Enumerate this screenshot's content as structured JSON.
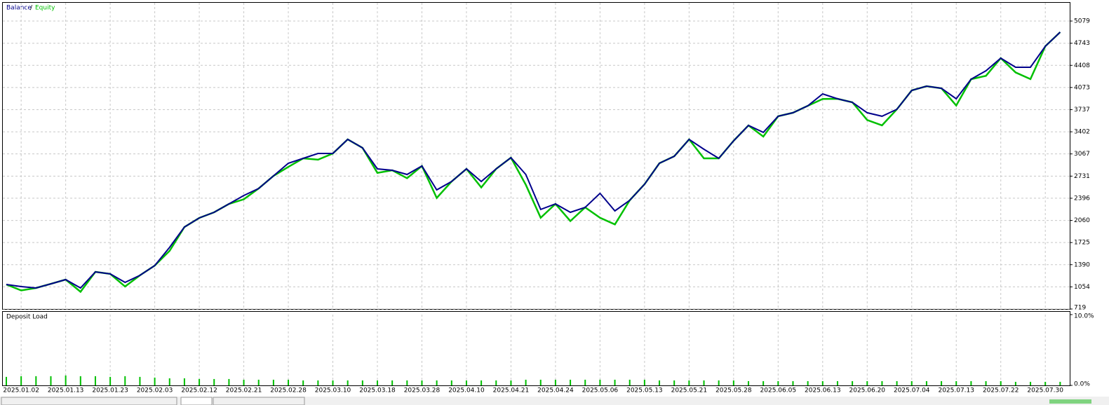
{
  "chart_data": [
    {
      "type": "line",
      "legend_separator": "/",
      "categories": [
        null,
        "2025.01.02",
        null,
        null,
        "2025.01.13",
        null,
        null,
        "2025.01.23",
        null,
        null,
        "2025.02.03",
        null,
        null,
        "2025.02.12",
        null,
        null,
        "2025.02.21",
        null,
        null,
        "2025.02.28",
        null,
        null,
        "2025.03.10",
        null,
        null,
        "2025.03.18",
        null,
        null,
        "2025.03.28",
        null,
        null,
        "2025.04.10",
        null,
        null,
        "2025.04.21",
        null,
        null,
        "2025.04.24",
        null,
        null,
        "2025.05.06",
        null,
        null,
        "2025.05.13",
        null,
        null,
        "2025.05.21",
        null,
        null,
        "2025.05.28",
        null,
        null,
        "2025.06.05",
        null,
        null,
        "2025.06.13",
        null,
        null,
        "2025.06.20",
        null,
        null,
        "2025.07.04",
        null,
        null,
        "2025.07.13",
        null,
        null,
        "2025.07.22",
        null,
        null,
        "2025.07.30",
        null
      ],
      "series": [
        {
          "name": "Balance",
          "color": "#00008b",
          "values": [
            1090,
            1059,
            1037,
            1100,
            1165,
            1037,
            1281,
            1250,
            1122,
            1228,
            1377,
            1653,
            1960,
            2098,
            2183,
            2310,
            2438,
            2544,
            2735,
            2926,
            3000,
            3074,
            3074,
            3287,
            3159,
            2841,
            2820,
            2756,
            2884,
            2523,
            2650,
            2841,
            2650,
            2841,
            3011,
            2756,
            2226,
            2310,
            2183,
            2257,
            2470,
            2204,
            2364,
            2608,
            2926,
            3032,
            3287,
            3138,
            3000,
            3265,
            3499,
            3393,
            3637,
            3690,
            3796,
            3976,
            3902,
            3849,
            3690,
            3637,
            3743,
            4029,
            4093,
            4061,
            3902,
            4199,
            4326,
            4517,
            4379,
            4379,
            4697,
            4910
          ]
        },
        {
          "name": "Equity",
          "color": "#00c000",
          "values": [
            1090,
            1000,
            1037,
            1100,
            1165,
            980,
            1281,
            1250,
            1060,
            1228,
            1377,
            1600,
            1960,
            2098,
            2183,
            2310,
            2380,
            2544,
            2735,
            2870,
            3000,
            2980,
            3074,
            3287,
            3159,
            2780,
            2820,
            2700,
            2884,
            2400,
            2650,
            2841,
            2560,
            2841,
            3011,
            2600,
            2100,
            2310,
            2050,
            2257,
            2100,
            2000,
            2364,
            2608,
            2926,
            3032,
            3287,
            3000,
            3000,
            3265,
            3499,
            3330,
            3637,
            3690,
            3796,
            3900,
            3902,
            3849,
            3580,
            3500,
            3743,
            4029,
            4093,
            4061,
            3800,
            4199,
            4250,
            4517,
            4300,
            4200,
            4697,
            4910
          ]
        }
      ],
      "ylim": [
        719,
        5355
      ],
      "yticks": [
        719,
        1054,
        1390,
        1725,
        2060,
        2396,
        2731,
        3067,
        3402,
        3737,
        4073,
        4408,
        4743,
        5079
      ],
      "grid": true
    },
    {
      "type": "bar",
      "title": "Deposit Load",
      "color": "#00c000",
      "values": [
        1.2,
        1.3,
        1.3,
        1.3,
        1.4,
        1.3,
        1.3,
        1.2,
        1.3,
        1.2,
        1.1,
        1.0,
        1.0,
        0.9,
        0.9,
        0.9,
        0.8,
        0.8,
        0.8,
        0.8,
        0.7,
        0.7,
        0.7,
        0.7,
        0.7,
        0.7,
        0.7,
        0.7,
        0.7,
        0.7,
        0.7,
        0.7,
        0.7,
        0.7,
        0.7,
        0.8,
        0.8,
        0.8,
        0.8,
        0.8,
        0.8,
        0.8,
        0.8,
        0.8,
        0.7,
        0.7,
        0.7,
        0.7,
        0.7,
        0.7,
        0.6,
        0.6,
        0.6,
        0.6,
        0.6,
        0.6,
        0.6,
        0.6,
        0.6,
        0.6,
        0.6,
        0.6,
        0.6,
        0.6,
        0.6,
        0.6,
        0.6,
        0.6,
        0.5,
        0.5,
        0.5,
        0.5
      ],
      "ylim": [
        0,
        10
      ],
      "yticks": [
        {
          "value": 0,
          "label": "0.0%"
        },
        {
          "value": 10,
          "label": "10.0%"
        }
      ],
      "grid": true
    }
  ]
}
